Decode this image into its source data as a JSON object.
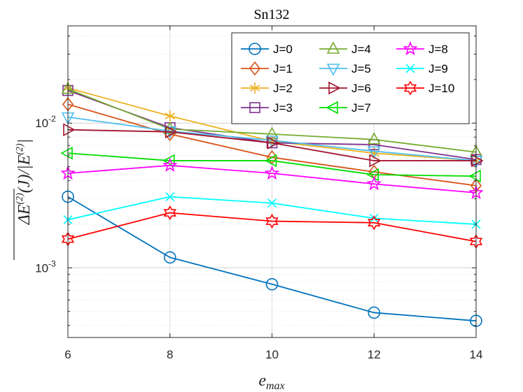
{
  "chart_data": {
    "type": "line",
    "title": "Sn132",
    "xlabel": "e_max",
    "ylabel": "ΔE(2)(J)/|E(2)|",
    "yscale": "log",
    "xlim": [
      6,
      14
    ],
    "ylim": [
      0.00033,
      0.047
    ],
    "x": [
      6,
      8,
      10,
      12,
      14
    ],
    "x_tick_labels": [
      "6",
      "8",
      "10",
      "12",
      "14"
    ],
    "y_tick_labels": [
      {
        "base": "10",
        "exp": "-3",
        "value": 0.001
      },
      {
        "base": "10",
        "exp": "-2",
        "value": 0.01
      }
    ],
    "grid": true,
    "legend_position": "top-right",
    "series": [
      {
        "name": "J=0",
        "color": "#0072BD",
        "marker": "circle",
        "values": [
          0.0031,
          0.00118,
          0.00077,
          0.00049,
          0.00043
        ]
      },
      {
        "name": "J=1",
        "color": "#D95319",
        "marker": "diamond",
        "values": [
          0.0135,
          0.0084,
          0.0058,
          0.0046,
          0.0037
        ]
      },
      {
        "name": "J=2",
        "color": "#EDB120",
        "marker": "asterisk",
        "values": [
          0.0175,
          0.0112,
          0.0075,
          0.0062,
          0.0055
        ]
      },
      {
        "name": "J=3",
        "color": "#7E2F8E",
        "marker": "square",
        "values": [
          0.0168,
          0.0093,
          0.0073,
          0.0071,
          0.0056
        ]
      },
      {
        "name": "J=4",
        "color": "#77AC30",
        "marker": "triangle-up",
        "values": [
          0.0172,
          0.0091,
          0.0084,
          0.0077,
          0.0063
        ]
      },
      {
        "name": "J=5",
        "color": "#4DBEEE",
        "marker": "triangle-down",
        "values": [
          0.011,
          0.0088,
          0.0076,
          0.0064,
          0.0055
        ]
      },
      {
        "name": "J=6",
        "color": "#A2142F",
        "marker": "triangle-right",
        "values": [
          0.009,
          0.0087,
          0.0073,
          0.0055,
          0.0055
        ]
      },
      {
        "name": "J=7",
        "color": "#00DD00",
        "marker": "triangle-left",
        "values": [
          0.0062,
          0.0055,
          0.0055,
          0.0044,
          0.0043
        ]
      },
      {
        "name": "J=8",
        "color": "#FF00FF",
        "marker": "pentagram",
        "values": [
          0.0045,
          0.0051,
          0.0045,
          0.0038,
          0.0033
        ]
      },
      {
        "name": "J=9",
        "color": "#00FFFF",
        "marker": "x",
        "values": [
          0.00215,
          0.0031,
          0.0028,
          0.0022,
          0.002
        ]
      },
      {
        "name": "J=10",
        "color": "#FF0000",
        "marker": "hexagram",
        "values": [
          0.00158,
          0.0024,
          0.0021,
          0.00205,
          0.00152
        ]
      }
    ]
  }
}
